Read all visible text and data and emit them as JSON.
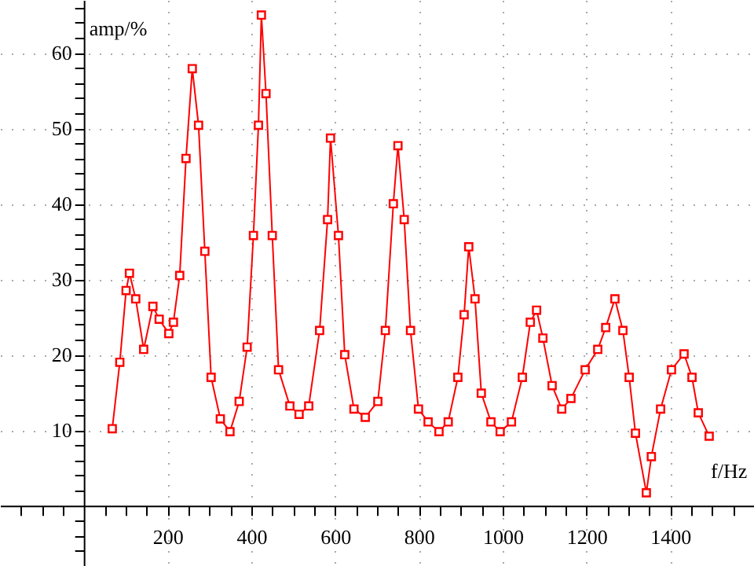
{
  "chart_data": {
    "type": "line",
    "xlabel": "f/Hz",
    "ylabel": "amp/%",
    "x": [
      68,
      86,
      101,
      109,
      124,
      143,
      165,
      180,
      203,
      214,
      229,
      244,
      259,
      274,
      289,
      304,
      326,
      349,
      371,
      390,
      405,
      417,
      424,
      435,
      450,
      465,
      492,
      514,
      537,
      563,
      582,
      589,
      608,
      623,
      645,
      672,
      702,
      720,
      739,
      750,
      765,
      780,
      799,
      822,
      848,
      870,
      893,
      908,
      919,
      934,
      949,
      972,
      994,
      1021,
      1047,
      1066,
      1081,
      1096,
      1118,
      1141,
      1163,
      1197,
      1227,
      1246,
      1268,
      1287,
      1302,
      1317,
      1343,
      1355,
      1377,
      1403,
      1433,
      1452,
      1467,
      1493
    ],
    "series": [
      {
        "color": "#ff0000",
        "values": [
          10.2,
          19,
          28.5,
          30.8,
          27.4,
          20.7,
          26.4,
          24.7,
          22.8,
          24.3,
          30.5,
          46,
          57.9,
          50.4,
          33.7,
          17,
          11.5,
          9.8,
          13.8,
          21,
          35.8,
          50.4,
          65,
          54.6,
          35.8,
          18,
          13.2,
          12.1,
          13.2,
          23.2,
          37.9,
          48.7,
          35.8,
          20,
          12.8,
          11.7,
          13.8,
          23.2,
          40,
          47.7,
          37.9,
          23.2,
          12.8,
          11.1,
          9.8,
          11.1,
          17,
          25.3,
          34.3,
          27.4,
          14.9,
          11.1,
          9.8,
          11.1,
          17,
          24.3,
          25.9,
          22.2,
          15.9,
          12.8,
          14.2,
          18,
          20.7,
          23.6,
          27.4,
          23.2,
          17,
          9.6,
          1.7,
          6.5,
          12.8,
          18,
          20.1,
          17,
          12.3,
          9.2
        ]
      }
    ],
    "xlim": [
      -200,
      1600
    ],
    "xticks": [
      {
        "value": -150,
        "label": null
      },
      {
        "value": -100,
        "label": null
      },
      {
        "value": -50,
        "label": null
      },
      {
        "value": 50,
        "label": null
      },
      {
        "value": 100,
        "label": null
      },
      {
        "value": 150,
        "label": null
      },
      200,
      {
        "value": 250,
        "label": null
      },
      {
        "value": 300,
        "label": null
      },
      {
        "value": 350,
        "label": null
      },
      400,
      {
        "value": 450,
        "label": null
      },
      {
        "value": 500,
        "label": null
      },
      {
        "value": 550,
        "label": null
      },
      600,
      {
        "value": 650,
        "label": null
      },
      {
        "value": 700,
        "label": null
      },
      {
        "value": 750,
        "label": null
      },
      800,
      {
        "value": 850,
        "label": null
      },
      {
        "value": 900,
        "label": null
      },
      {
        "value": 950,
        "label": null
      },
      1000,
      {
        "value": 1050,
        "label": null
      },
      {
        "value": 1100,
        "label": null
      },
      {
        "value": 1150,
        "label": null
      },
      1200,
      {
        "value": 1250,
        "label": null
      },
      {
        "value": 1300,
        "label": null
      },
      {
        "value": 1350,
        "label": null
      },
      1400,
      {
        "value": 1450,
        "label": null
      },
      {
        "value": 1500,
        "label": null
      },
      {
        "value": 1550,
        "label": null
      }
    ],
    "ylim": [
      -8,
      67
    ],
    "yticks": [
      {
        "value": -6,
        "label": null
      },
      {
        "value": -4,
        "label": null
      },
      {
        "value": -2,
        "label": null
      },
      {
        "value": 2,
        "label": null
      },
      {
        "value": 4,
        "label": null
      },
      {
        "value": 6,
        "label": null
      },
      {
        "value": 8,
        "label": null
      },
      10,
      {
        "value": 12,
        "label": null
      },
      {
        "value": 14,
        "label": null
      },
      {
        "value": 16,
        "label": null
      },
      {
        "value": 18,
        "label": null
      },
      20,
      {
        "value": 22,
        "label": null
      },
      {
        "value": 24,
        "label": null
      },
      {
        "value": 26,
        "label": null
      },
      {
        "value": 28,
        "label": null
      },
      30,
      {
        "value": 32,
        "label": null
      },
      {
        "value": 34,
        "label": null
      },
      {
        "value": 36,
        "label": null
      },
      {
        "value": 38,
        "label": null
      },
      40,
      {
        "value": 42,
        "label": null
      },
      {
        "value": 44,
        "label": null
      },
      {
        "value": 46,
        "label": null
      },
      {
        "value": 48,
        "label": null
      },
      50,
      {
        "value": 52,
        "label": null
      },
      {
        "value": 54,
        "label": null
      },
      {
        "value": 56,
        "label": null
      },
      {
        "value": 58,
        "label": null
      },
      60,
      {
        "value": 62,
        "label": null
      },
      {
        "value": 64,
        "label": null
      },
      {
        "value": 66,
        "label": null
      }
    ],
    "grid": true,
    "marker": "square",
    "line_style": "solid"
  }
}
